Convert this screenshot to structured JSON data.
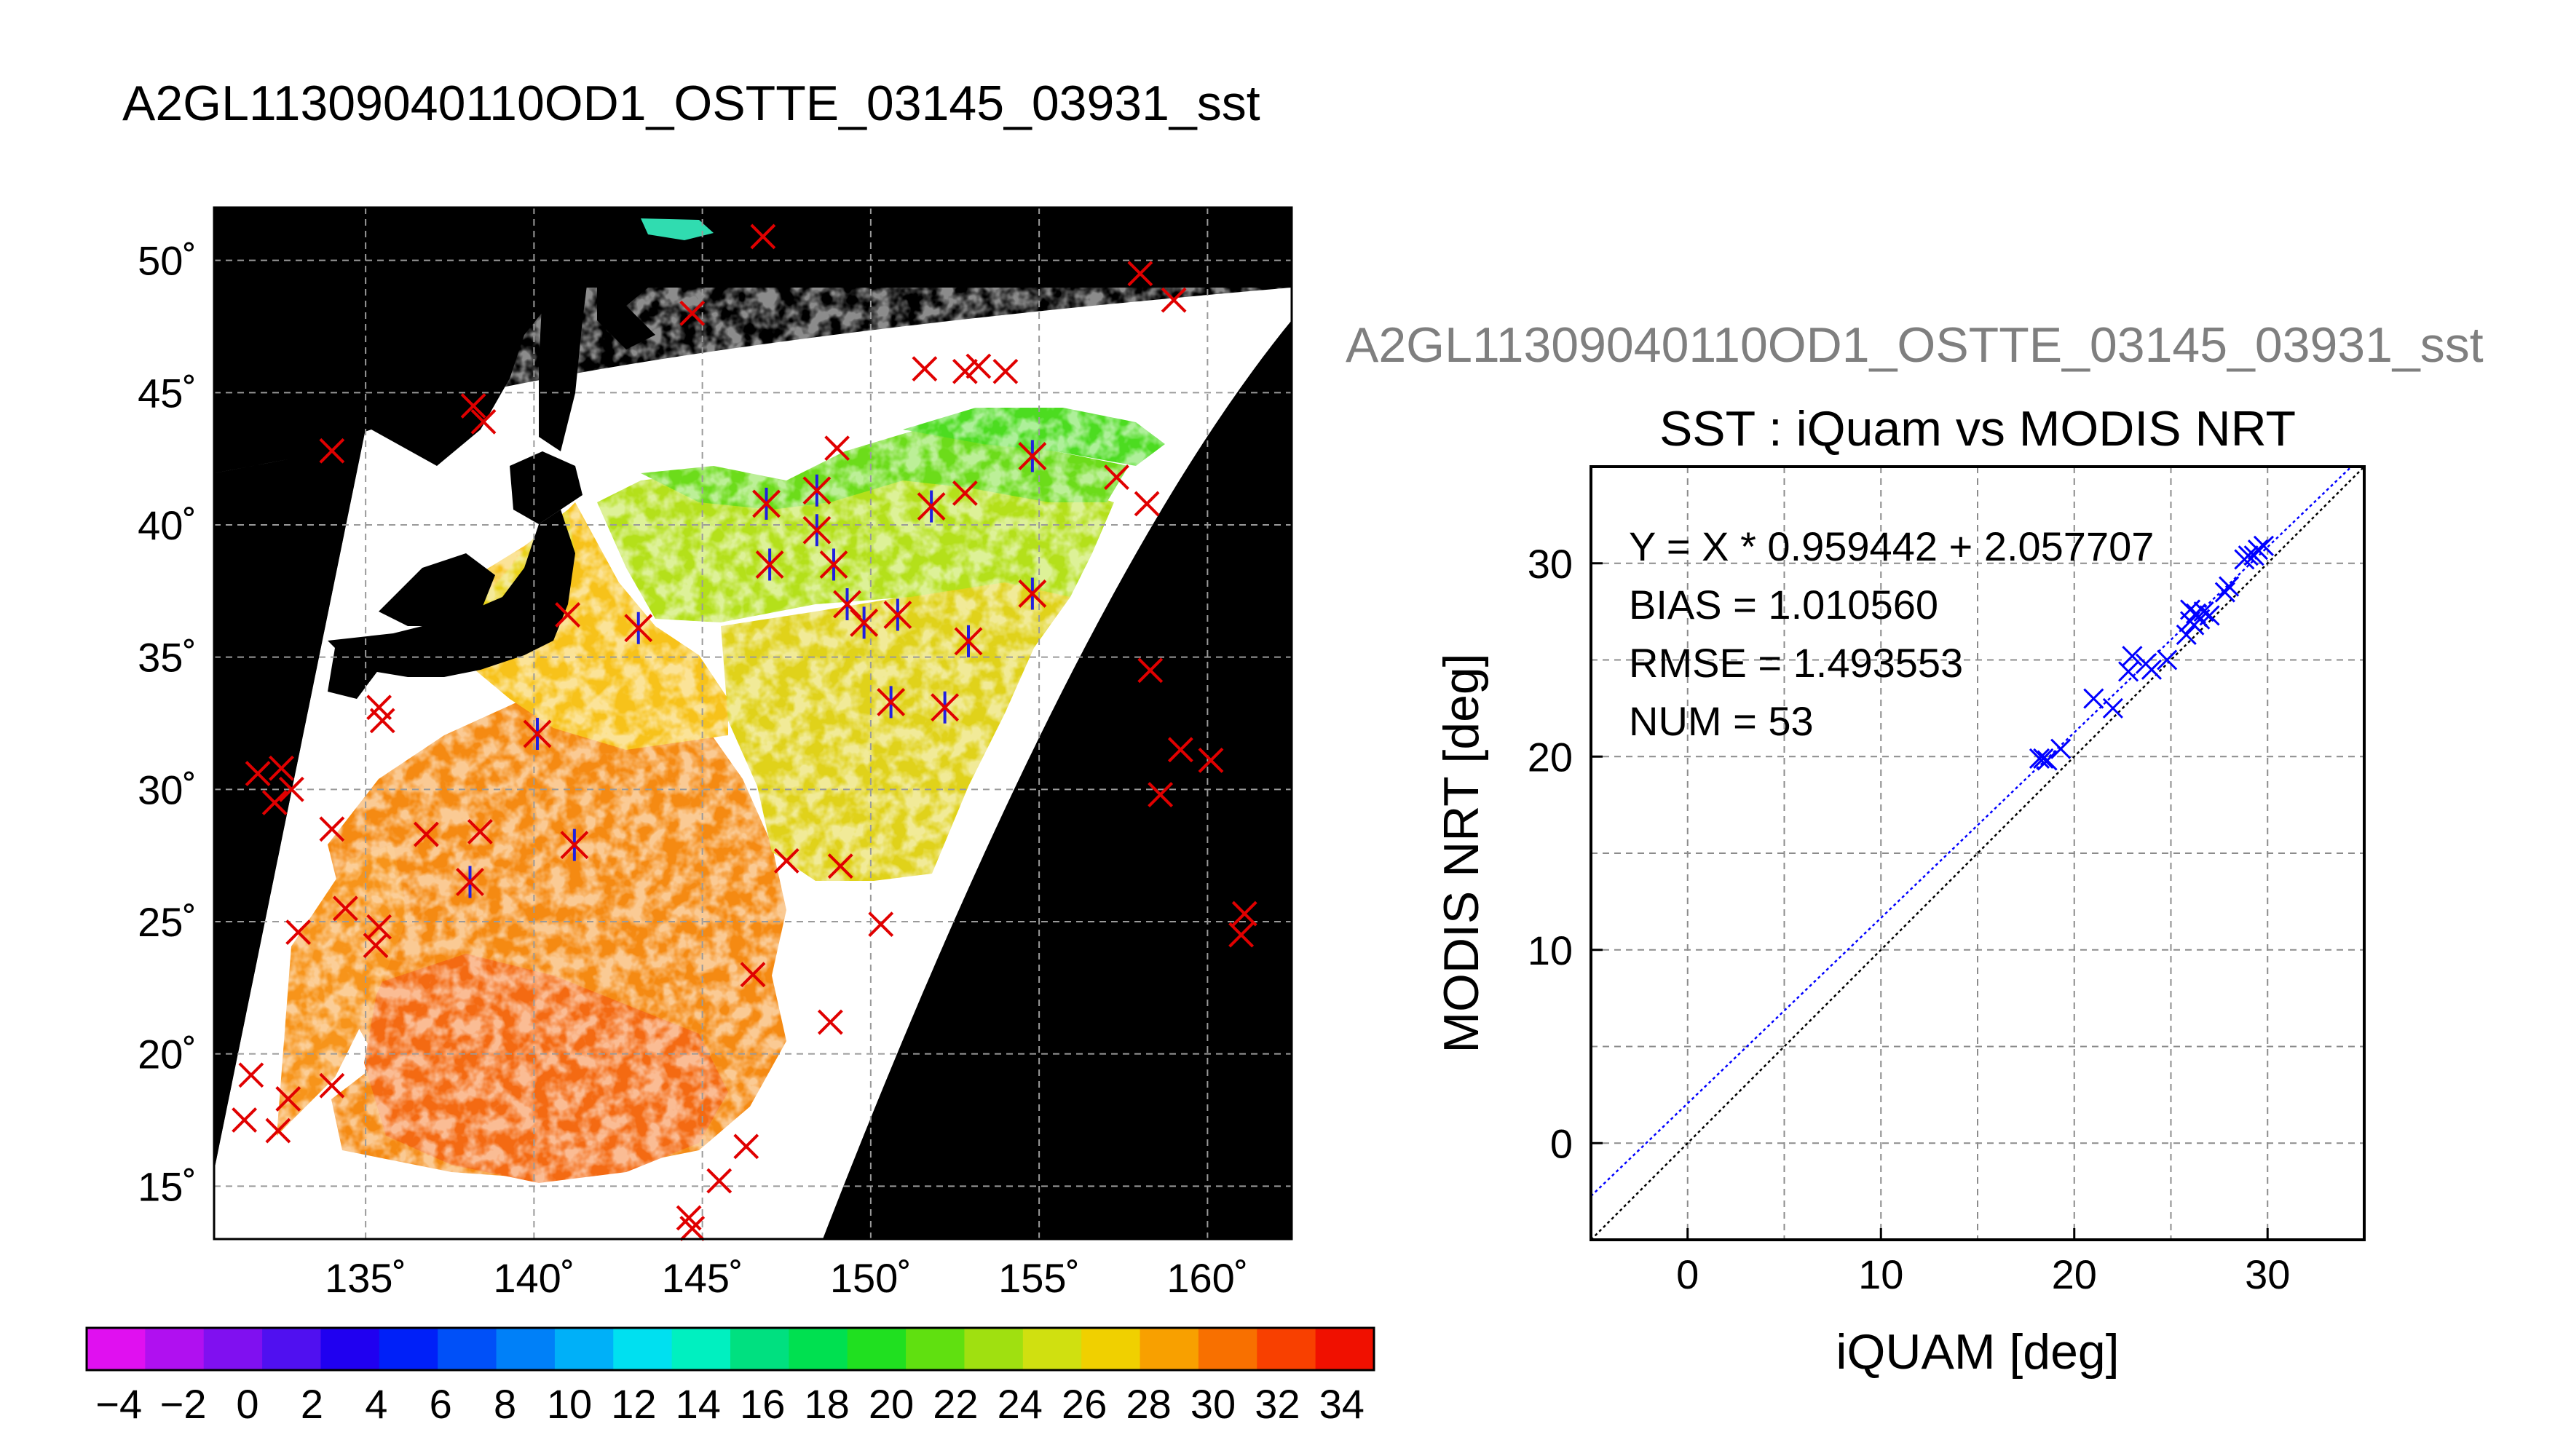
{
  "page_title": "A2GL11309040110OD1_OSTTE_03145_03931_sst",
  "map": {
    "lat_labels": [
      "50˚",
      "45˚",
      "40˚",
      "35˚",
      "30˚",
      "25˚",
      "20˚",
      "15˚"
    ],
    "lon_labels": [
      "135˚",
      "140˚",
      "145˚",
      "150˚",
      "155˚",
      "160˚"
    ]
  },
  "colorbar": {
    "tick_labels": [
      "−4",
      "−2",
      "0",
      "2",
      "4",
      "6",
      "8",
      "10",
      "12",
      "14",
      "16",
      "18",
      "20",
      "22",
      "24",
      "26",
      "28",
      "30",
      "32",
      "34"
    ],
    "colors": [
      "#e010f0",
      "#b010f0",
      "#8010f0",
      "#5010f0",
      "#2000f0",
      "#0020f8",
      "#0050f8",
      "#0080f8",
      "#00b0f8",
      "#00e0f0",
      "#00f0c0",
      "#00e080",
      "#00e050",
      "#20e020",
      "#60e010",
      "#a0e010",
      "#d0e010",
      "#f0d000",
      "#f8a000",
      "#f87000",
      "#f84000",
      "#f01000"
    ]
  },
  "scatter": {
    "header": "A2GL11309040110OD1_OSTTE_03145_03931_sst",
    "title": "SST : iQuam vs MODIS NRT",
    "xlabel": "iQUAM [deg]",
    "ylabel": "MODIS NRT [deg]",
    "xticks": [
      "0",
      "10",
      "20",
      "30"
    ],
    "yticks": [
      "0",
      "10",
      "20",
      "30"
    ],
    "stats": {
      "fit": "Y = X * 0.959442 + 2.057707",
      "bias": "BIAS = 1.010560",
      "rmse": "RMSE = 1.493553",
      "num": "NUM = 53"
    }
  },
  "chart_data": [
    {
      "type": "heatmap",
      "title": "A2GL11309040110OD1_OSTTE_03145_03931_sst",
      "xlim": [
        130.5,
        162.5
      ],
      "ylim": [
        13,
        52
      ],
      "grid": true,
      "colorbar_range": [
        -5,
        35
      ],
      "markers_red_x": [
        [
          146.8,
          50.9
        ],
        [
          144.7,
          48
        ],
        [
          158,
          49.5
        ],
        [
          159,
          48.5
        ],
        [
          154,
          45.8
        ],
        [
          153.2,
          46
        ],
        [
          152.8,
          45.8
        ],
        [
          151.6,
          45.9
        ],
        [
          138.2,
          44.5
        ],
        [
          138.5,
          43.9
        ],
        [
          134,
          42.8
        ],
        [
          149,
          42.9
        ],
        [
          152.8,
          41.2
        ],
        [
          157.3,
          41.8
        ],
        [
          158.2,
          40.8
        ],
        [
          141,
          36.6
        ],
        [
          135.4,
          33.1
        ],
        [
          135.5,
          32.6
        ],
        [
          131.8,
          30.6
        ],
        [
          132.5,
          30.8
        ],
        [
          132.8,
          30
        ],
        [
          132.3,
          29.5
        ],
        [
          134,
          28.5
        ],
        [
          158.3,
          34.5
        ],
        [
          159.2,
          31.5
        ],
        [
          160.1,
          31.1
        ],
        [
          158.6,
          29.8
        ],
        [
          136.8,
          28.3
        ],
        [
          138.4,
          28.4
        ],
        [
          147.5,
          27.3
        ],
        [
          149.1,
          27.1
        ],
        [
          134.4,
          25.5
        ],
        [
          133,
          24.6
        ],
        [
          135.4,
          24.8
        ],
        [
          135.3,
          24.1
        ],
        [
          150.3,
          24.9
        ],
        [
          146.5,
          23
        ],
        [
          161.1,
          25.3
        ],
        [
          161,
          24.5
        ],
        [
          148.8,
          21.2
        ],
        [
          131.6,
          19.2
        ],
        [
          132.7,
          18.3
        ],
        [
          131.4,
          17.5
        ],
        [
          132.4,
          17.1
        ],
        [
          134,
          18.8
        ],
        [
          146.3,
          16.5
        ],
        [
          145.5,
          15.2
        ],
        [
          144.6,
          13.8
        ],
        [
          144.7,
          13.4
        ]
      ],
      "markers_mixed": [
        [
          146.9,
          40.8
        ],
        [
          147,
          38.5
        ],
        [
          148.4,
          41.3
        ],
        [
          148.4,
          39.8
        ],
        [
          148.9,
          38.5
        ],
        [
          149.3,
          37
        ],
        [
          149.8,
          36.3
        ],
        [
          151.8,
          40.7
        ],
        [
          154.8,
          42.6
        ],
        [
          150.8,
          36.6
        ],
        [
          143.1,
          36.1
        ],
        [
          152.9,
          35.6
        ],
        [
          154.8,
          37.4
        ],
        [
          150.6,
          33.3
        ],
        [
          152.2,
          33.1
        ],
        [
          140.1,
          32.1
        ],
        [
          141.2,
          27.9
        ],
        [
          138.1,
          26.5
        ]
      ]
    },
    {
      "type": "scatter",
      "title": "SST : iQuam vs MODIS NRT",
      "xlabel": "iQUAM [deg]",
      "ylabel": "MODIS NRT [deg]",
      "xlim": [
        -5,
        35
      ],
      "ylim": [
        -5,
        35
      ],
      "grid": true,
      "series": [
        {
          "color": "#0000ff",
          "points": [
            [
              18.2,
              19.9
            ],
            [
              18.4,
              19.9
            ],
            [
              18.6,
              19.8
            ],
            [
              19.3,
              20.4
            ],
            [
              21,
              23
            ],
            [
              22,
              22.5
            ],
            [
              22.8,
              24.4
            ],
            [
              23,
              25.2
            ],
            [
              23.7,
              24.8
            ],
            [
              24,
              24.5
            ],
            [
              24.8,
              25
            ],
            [
              25.8,
              26.3
            ],
            [
              26,
              27
            ],
            [
              26,
              27.6
            ],
            [
              26.2,
              26.8
            ],
            [
              26.3,
              27.4
            ],
            [
              26.5,
              27.1
            ],
            [
              26.7,
              27.5
            ],
            [
              27,
              27.3
            ],
            [
              27.8,
              28.5
            ],
            [
              28,
              28.8
            ],
            [
              28.8,
              30.2
            ],
            [
              29,
              30.4
            ],
            [
              29.3,
              30.4
            ],
            [
              29.5,
              30.7
            ],
            [
              29.8,
              30.9
            ]
          ]
        }
      ],
      "lines": [
        {
          "type": "fit",
          "color": "#0000ff",
          "slope": 0.959442,
          "intercept": 2.057707
        },
        {
          "type": "identity",
          "color": "#000000",
          "slope": 1,
          "intercept": 0
        }
      ]
    }
  ]
}
